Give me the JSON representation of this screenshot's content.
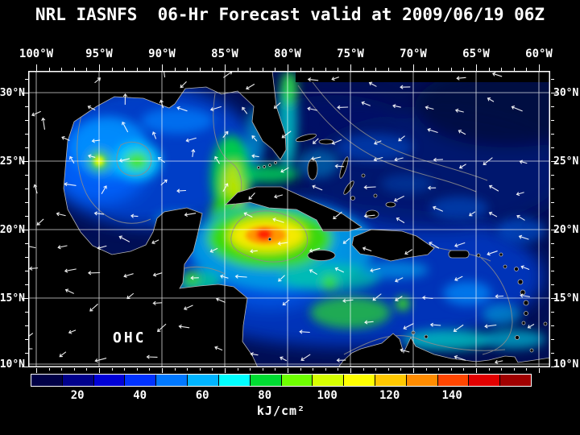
{
  "title": "NRL IASNFS  06-Hr Forecast valid at 2009/06/19 06Z",
  "map": {
    "field_label": "OHC",
    "lon_ticks": [
      "100°W",
      "95°W",
      "90°W",
      "85°W",
      "80°W",
      "75°W",
      "70°W",
      "65°W",
      "60°W"
    ],
    "lat_ticks": [
      "30°N",
      "25°N",
      "20°N",
      "15°N",
      "10°N"
    ]
  },
  "colorbar": {
    "tick_labels": [
      "20",
      "40",
      "60",
      "80",
      "100",
      "120",
      "140"
    ],
    "unit": "kJ/cm²",
    "segment_colors": [
      "#000046",
      "#00008c",
      "#0000d7",
      "#0032ff",
      "#0078ff",
      "#00b4ff",
      "#00ffff",
      "#00dc32",
      "#6eff00",
      "#d7ff00",
      "#ffff00",
      "#ffc800",
      "#ff8c00",
      "#ff4600",
      "#e10000",
      "#a00000"
    ]
  },
  "colors": {
    "background": "#000000",
    "text": "#ffffff",
    "grid": "#ffffff",
    "vectors": "#ffffff",
    "contours": "#8c8c8c",
    "land": "#000000"
  },
  "chart_data": {
    "type": "heatmap",
    "title": "NRL IASNFS  06-Hr Forecast valid at 2009/06/19 06Z",
    "field": "OHC",
    "unit": "kJ/cm²",
    "colorbar_ticks": [
      20,
      40,
      60,
      80,
      100,
      120,
      140
    ],
    "x_ticks": [
      "100°W",
      "95°W",
      "90°W",
      "85°W",
      "80°W",
      "75°W",
      "70°W",
      "65°W",
      "60°W"
    ],
    "y_ticks": [
      "30°N",
      "25°N",
      "20°N",
      "15°N",
      "10°N"
    ],
    "legend_position": "bottom",
    "grid": true
  }
}
